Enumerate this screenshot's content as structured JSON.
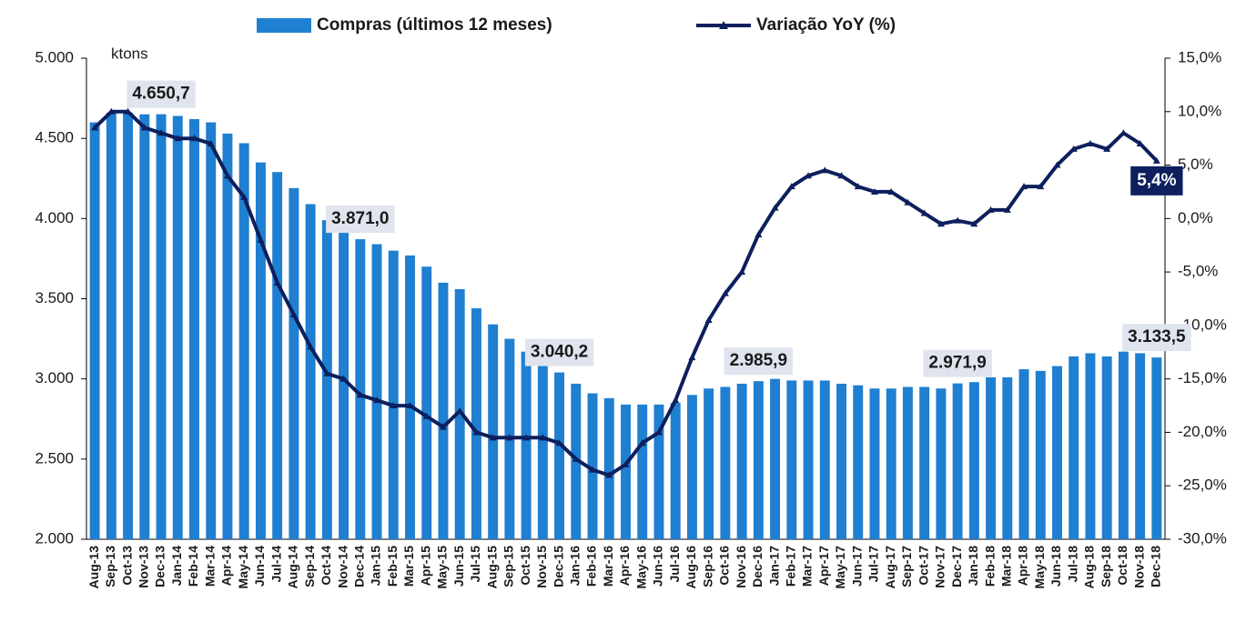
{
  "chart_data": {
    "type": "bar_line",
    "y_label": "ktons",
    "categories": [
      "Aug-13",
      "Sep-13",
      "Oct-13",
      "Nov-13",
      "Dec-13",
      "Jan-14",
      "Feb-14",
      "Mar-14",
      "Apr-14",
      "May-14",
      "Jun-14",
      "Jul-14",
      "Aug-14",
      "Sep-14",
      "Oct-14",
      "Nov-14",
      "Dec-14",
      "Jan-15",
      "Feb-15",
      "Mar-15",
      "Apr-15",
      "May-15",
      "Jun-15",
      "Jul-15",
      "Aug-15",
      "Sep-15",
      "Oct-15",
      "Nov-15",
      "Dec-15",
      "Jan-16",
      "Feb-16",
      "Mar-16",
      "Apr-16",
      "May-16",
      "Jun-16",
      "Jul-16",
      "Aug-16",
      "Sep-16",
      "Oct-16",
      "Nov-16",
      "Dec-16",
      "Jan-17",
      "Feb-17",
      "Mar-17",
      "Apr-17",
      "May-17",
      "Jun-17",
      "Jul-17",
      "Aug-17",
      "Sep-17",
      "Oct-17",
      "Nov-17",
      "Dec-17",
      "Jan-18",
      "Feb-18",
      "Mar-18",
      "Apr-18",
      "May-18",
      "Jun-18",
      "Jul-18",
      "Aug-18",
      "Sep-18",
      "Oct-18",
      "Nov-18",
      "Dec-18"
    ],
    "series": [
      {
        "name": "Compras (últimos 12 meses)",
        "type": "bar",
        "color": "#1f7fd0",
        "values": [
          4600,
          4660,
          4660,
          4650,
          4650.7,
          4640,
          4620,
          4600,
          4530,
          4470,
          4350,
          4290,
          4190,
          4090,
          3990,
          3930,
          3871.0,
          3840,
          3800,
          3770,
          3700,
          3600,
          3560,
          3440,
          3340,
          3250,
          3170,
          3110,
          3040.2,
          2970,
          2910,
          2880,
          2840,
          2840,
          2840,
          2850,
          2900,
          2940,
          2950,
          2970,
          2985.9,
          3000,
          2990,
          2990,
          2990,
          2970,
          2960,
          2940,
          2940,
          2950,
          2950,
          2940,
          2971.9,
          2980,
          3010,
          3010,
          3060,
          3050,
          3080,
          3140,
          3160,
          3140,
          3170,
          3160,
          3133.5
        ],
        "value_labels": [
          null,
          null,
          null,
          null,
          "4.650,7",
          null,
          null,
          null,
          null,
          null,
          null,
          null,
          null,
          null,
          null,
          null,
          "3.871,0",
          null,
          null,
          null,
          null,
          null,
          null,
          null,
          null,
          null,
          null,
          null,
          "3.040,2",
          null,
          null,
          null,
          null,
          null,
          null,
          null,
          null,
          null,
          null,
          null,
          "2.985,9",
          null,
          null,
          null,
          null,
          null,
          null,
          null,
          null,
          null,
          null,
          null,
          "2.971,9",
          null,
          null,
          null,
          null,
          null,
          null,
          null,
          null,
          null,
          null,
          null,
          "3.133,5"
        ]
      },
      {
        "name": "Variação YoY (%)",
        "type": "line",
        "axis": "y2",
        "color": "#0d1f5c",
        "values": [
          8.5,
          10,
          10,
          8.5,
          8,
          7.5,
          7.5,
          7,
          4,
          2,
          -2,
          -6,
          -9,
          -12,
          -14.5,
          -15,
          -16.5,
          -17,
          -17.5,
          -17.5,
          -18.5,
          -19.5,
          -18,
          -20,
          -20.5,
          -20.5,
          -20.5,
          -20.5,
          -21,
          -22.5,
          -23.5,
          -24,
          -23,
          -21,
          -20,
          -17,
          -13,
          -9.5,
          -7,
          -5,
          -1.5,
          1,
          3,
          4,
          4.5,
          4,
          3,
          2.5,
          2.5,
          1.5,
          0.5,
          -0.5,
          -0.2,
          -0.5,
          0.8,
          0.8,
          3,
          3,
          5,
          6.5,
          7,
          6.5,
          8,
          7,
          5.4
        ],
        "value_labels": [
          null,
          null,
          null,
          null,
          null,
          null,
          null,
          null,
          null,
          null,
          null,
          null,
          null,
          null,
          null,
          null,
          null,
          null,
          null,
          null,
          null,
          null,
          null,
          null,
          null,
          null,
          null,
          null,
          null,
          null,
          null,
          null,
          null,
          null,
          null,
          null,
          null,
          null,
          null,
          null,
          null,
          null,
          null,
          null,
          null,
          null,
          null,
          null,
          null,
          null,
          null,
          null,
          null,
          null,
          null,
          null,
          null,
          null,
          null,
          null,
          null,
          null,
          null,
          null,
          "5,4%"
        ]
      }
    ],
    "ylim": [
      2000,
      5000
    ],
    "yticks": [
      {
        "value": 2000,
        "label": "2.000"
      },
      {
        "value": 2500,
        "label": "2.500"
      },
      {
        "value": 3000,
        "label": "3.000"
      },
      {
        "value": 3500,
        "label": "3.500"
      },
      {
        "value": 4000,
        "label": "4.000"
      },
      {
        "value": 4500,
        "label": "4.500"
      },
      {
        "value": 5000,
        "label": "5.000"
      }
    ],
    "y2lim": [
      -30,
      15
    ],
    "y2ticks": [
      {
        "value": -30,
        "label": "-30,0%"
      },
      {
        "value": -25,
        "label": "-25,0%"
      },
      {
        "value": -20,
        "label": "-20,0%"
      },
      {
        "value": -15,
        "label": "-15,0%"
      },
      {
        "value": -10,
        "label": "-10,0%"
      },
      {
        "value": -5,
        "label": "-5,0%"
      },
      {
        "value": 0,
        "label": "0,0%"
      },
      {
        "value": 5,
        "label": "5,0%"
      },
      {
        "value": 10,
        "label": "10,0%"
      },
      {
        "value": 15,
        "label": "15,0%"
      }
    ],
    "legend": "top"
  }
}
